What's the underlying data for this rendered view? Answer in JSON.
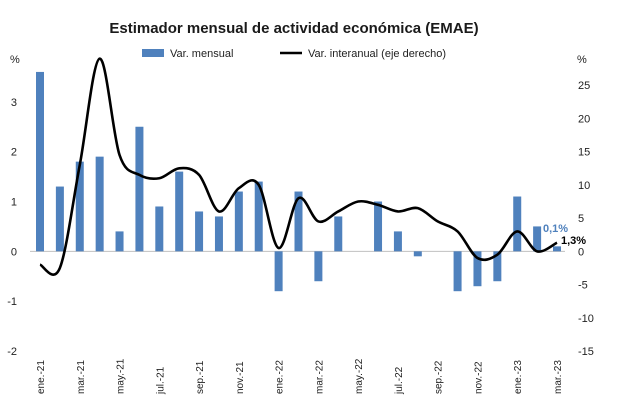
{
  "chart_data": {
    "type": "bar+line",
    "title": "Estimador mensual de actividad económica (EMAE)",
    "categories": [
      "ene.-21",
      "feb.-21",
      "mar.-21",
      "abr.-21",
      "may.-21",
      "jun.-21",
      "jul.-21",
      "ago.-21",
      "sep.-21",
      "oct.-21",
      "nov.-21",
      "dic.-21",
      "ene.-22",
      "feb.-22",
      "mar.-22",
      "abr.-22",
      "may.-22",
      "jun.-22",
      "jul.-22",
      "ago.-22",
      "sep.-22",
      "oct.-22",
      "nov.-22",
      "dic.-22",
      "ene.-23",
      "feb.-23",
      "mar.-23"
    ],
    "x_tick_labels": [
      "ene.-21",
      "mar.-21",
      "may.-21",
      "jul.-21",
      "sep.-21",
      "nov.-21",
      "ene.-22",
      "mar.-22",
      "may.-22",
      "jul.-22",
      "sep.-22",
      "nov.-22",
      "ene.-23",
      "mar.-23"
    ],
    "series": [
      {
        "name": "Var. mensual",
        "type": "bar",
        "axis": "left",
        "color": "#4f81bd",
        "values": [
          3.6,
          1.3,
          1.8,
          1.9,
          0.4,
          2.5,
          0.9,
          1.6,
          0.8,
          0.7,
          1.2,
          1.4,
          -0.8,
          1.2,
          -0.6,
          0.7,
          0.0,
          1.0,
          0.4,
          -0.1,
          0.0,
          -0.8,
          -0.7,
          -0.6,
          1.1,
          0.5,
          0.1
        ]
      },
      {
        "name": "Var. interanual (eje derecho)",
        "type": "line",
        "axis": "right",
        "color": "#000000",
        "values": [
          -2.0,
          -2.5,
          13.0,
          29.0,
          14.5,
          11.5,
          11.0,
          12.5,
          11.5,
          6.0,
          9.5,
          10.0,
          0.5,
          8.0,
          4.5,
          6.0,
          7.5,
          7.0,
          6.0,
          6.5,
          4.5,
          3.0,
          -1.0,
          -0.5,
          3.0,
          0.0,
          1.3
        ]
      }
    ],
    "y_left": {
      "unit": "%",
      "ylim": [
        -2,
        4
      ],
      "ticks": [
        "-2",
        "-1",
        "0",
        "1",
        "2",
        "3"
      ]
    },
    "y_right": {
      "unit": "%",
      "ylim": [
        -15,
        30
      ],
      "ticks": [
        "-15",
        "-10",
        "-5",
        "0",
        "5",
        "10",
        "15",
        "20",
        "25"
      ]
    },
    "legend": {
      "placement": "top"
    },
    "grid": false,
    "annotations": [
      {
        "text": "0,1%",
        "series": "Var. mensual",
        "color": "#4f81bd"
      },
      {
        "text": "1,3%",
        "series": "Var. interanual (eje derecho)",
        "color": "#000000"
      }
    ]
  }
}
